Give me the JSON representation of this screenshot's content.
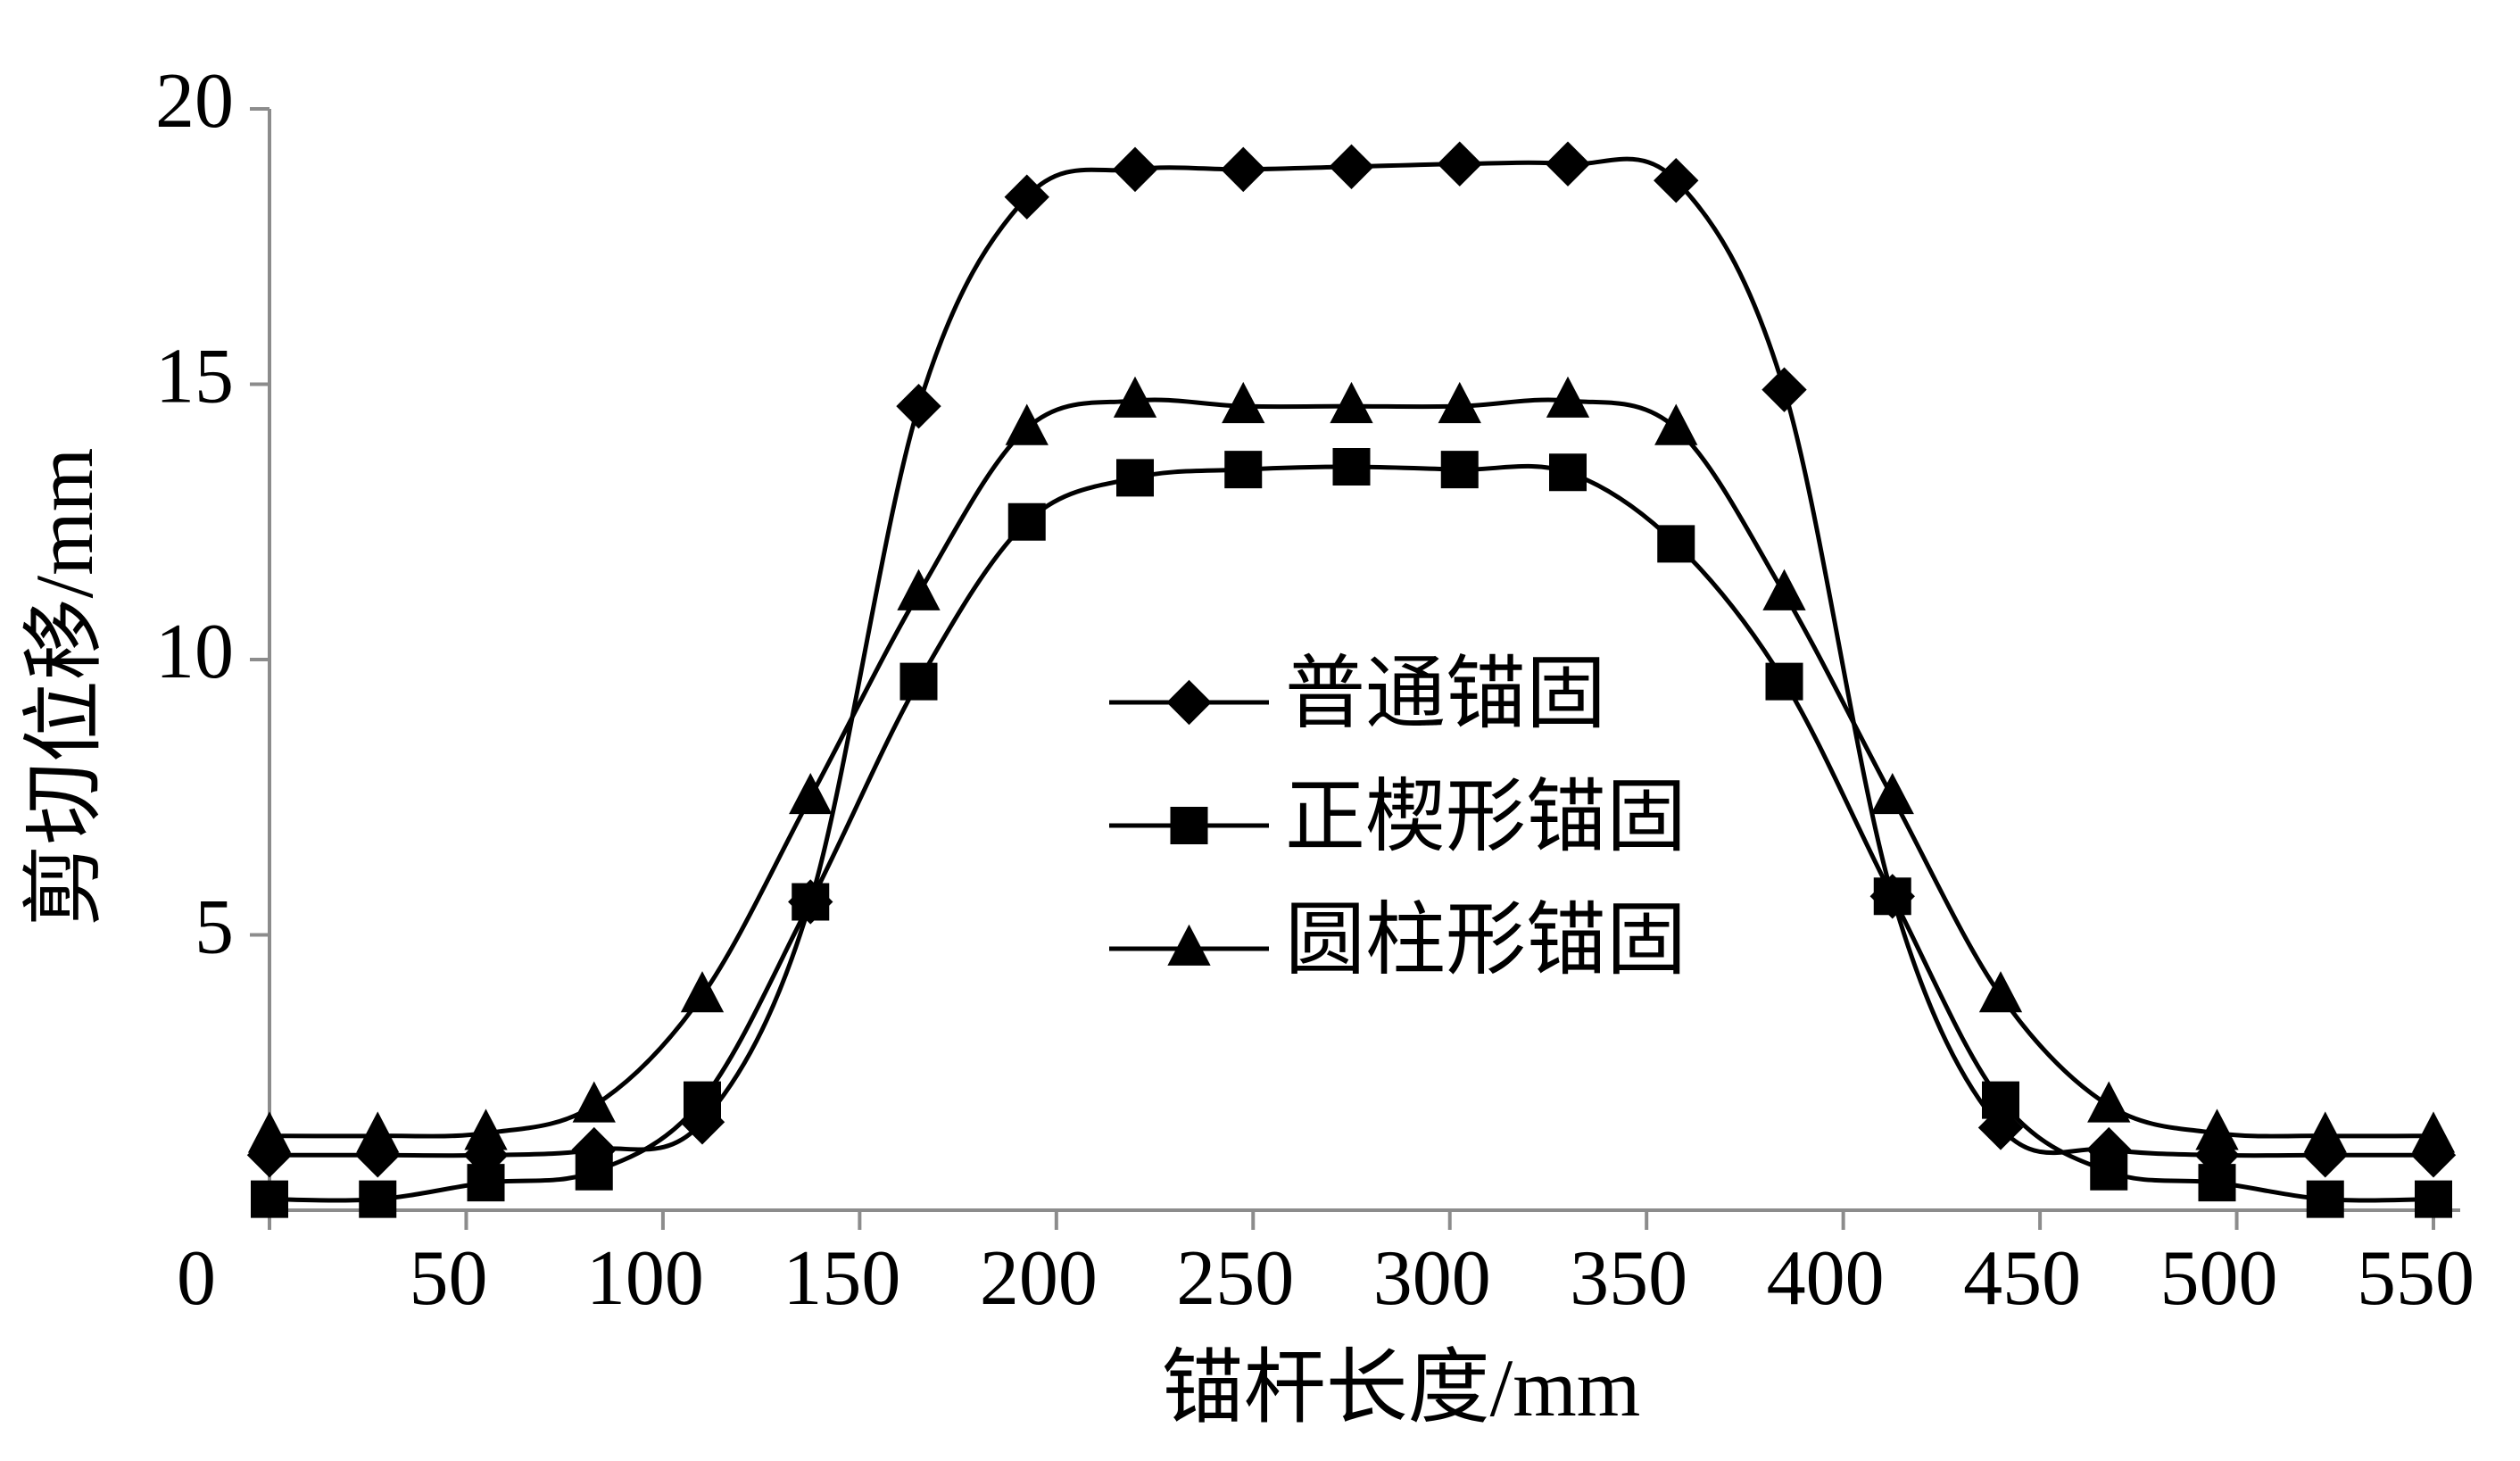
{
  "chart_data": {
    "type": "line",
    "x_label": "锚杆长度/mm",
    "y_label": "剪切位移/mm",
    "x": [
      0,
      27.5,
      55,
      82.5,
      110,
      137.5,
      165,
      192.5,
      220,
      247.5,
      275,
      302.5,
      330,
      357.5,
      385,
      412.5,
      440,
      467.5,
      495,
      522.5,
      550
    ],
    "series": [
      {
        "name": "普通锚固",
        "color": "#000000",
        "marker": "diamond",
        "values": [
          1.0,
          1.0,
          1.0,
          1.1,
          1.6,
          5.6,
          14.6,
          18.4,
          18.9,
          18.9,
          18.95,
          19.0,
          19.0,
          18.7,
          14.9,
          5.7,
          1.5,
          1.1,
          1.0,
          1.0,
          1.0
        ]
      },
      {
        "name": "正楔形锚固",
        "color": "#000000",
        "marker": "square",
        "values": [
          0.2,
          0.2,
          0.5,
          0.7,
          2.0,
          5.6,
          9.6,
          12.5,
          13.3,
          13.45,
          13.5,
          13.45,
          13.4,
          12.1,
          9.6,
          5.7,
          2.0,
          0.7,
          0.5,
          0.2,
          0.2
        ]
      },
      {
        "name": "圆柱形锚固",
        "color": "#000000",
        "marker": "triangle",
        "values": [
          1.35,
          1.35,
          1.4,
          1.9,
          3.9,
          7.5,
          11.2,
          14.2,
          14.7,
          14.6,
          14.6,
          14.6,
          14.7,
          14.2,
          11.2,
          7.5,
          3.9,
          1.9,
          1.4,
          1.35,
          1.35
        ]
      }
    ],
    "xlim": [
      0,
      550
    ],
    "ylim": [
      0,
      20
    ],
    "xticks": [
      0,
      50,
      100,
      150,
      200,
      250,
      300,
      350,
      400,
      450,
      500,
      550
    ],
    "yticks": [
      5,
      10,
      15,
      20
    ],
    "grid": false,
    "axis_color": "#8c8c8c"
  }
}
